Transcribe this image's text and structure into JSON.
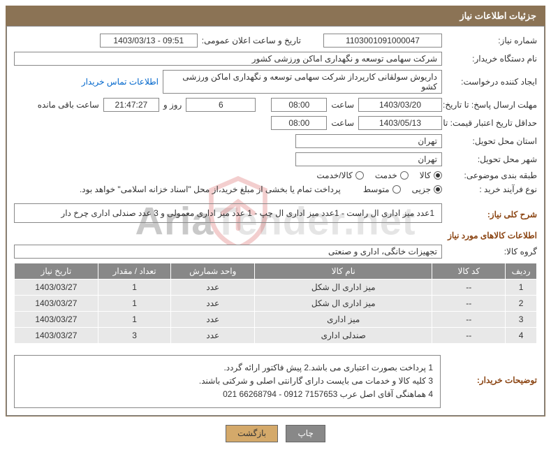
{
  "colors": {
    "header_bg": "#8b7355",
    "header_text": "#ffffff",
    "border": "#888888",
    "section_title": "#8b4513",
    "link": "#0066cc",
    "table_header_bg": "#888888",
    "table_row_bg": "#e8e8e8",
    "btn_print_bg": "#888888",
    "btn_back_bg": "#d4a96a",
    "watermark": "rgba(180,180,180,0.35)"
  },
  "header": {
    "title": "جزئیات اطلاعات نیاز"
  },
  "fields": {
    "need_no_label": "شماره نیاز:",
    "need_no": "1103001091000047",
    "public_announce_label": "تاریخ و ساعت اعلان عمومی:",
    "public_announce": "1403/03/13 - 09:51",
    "buyer_org_label": "نام دستگاه خریدار:",
    "buyer_org": "شرکت سهامی توسعه و نگهداری اماکن ورزشی کشور",
    "requester_label": "ایجاد کننده درخواست:",
    "requester": "داریوش سولقانی کارپرداز شرکت سهامی توسعه و نگهداری اماکن ورزشی کشو",
    "buyer_contact_link": "اطلاعات تماس خریدار",
    "deadline_label": "مهلت ارسال پاسخ: تا تاریخ:",
    "deadline_date": "1403/03/20",
    "time_label": "ساعت",
    "deadline_time": "08:00",
    "days_count": "6",
    "days_and_label": "روز و",
    "remaining_time": "21:47:27",
    "remaining_label": "ساعت باقی مانده",
    "min_validity_label": "حداقل تاریخ اعتبار قیمت: تا",
    "min_validity_date": "1403/05/13",
    "min_validity_time": "08:00",
    "delivery_province_label": "استان محل تحویل:",
    "delivery_province": "تهران",
    "delivery_city_label": "شهر محل تحویل:",
    "delivery_city": "تهران",
    "subject_class_label": "طبقه بندی موضوعی:",
    "radio_kala": "کالا",
    "radio_khedmat": "خدمت",
    "radio_kala_khedmat": "کالا/خدمت",
    "purchase_process_label": "نوع فرآیند خرید :",
    "radio_jozei": "جزیی",
    "radio_motevaset": "متوسط",
    "payment_note": "پرداخت تمام یا بخشی از مبلغ خرید،از محل \"اسناد خزانه اسلامی\" خواهد بود.",
    "general_desc_label": "شرح کلی نیاز:",
    "general_desc": "1عدد میز اداری ال راست - 1عدد میز اداری ال چپ - 1 عدد میز اداری معمولی  و 3 عدد صندلی اداری چرخ دار",
    "items_section_title": "اطلاعات کالاهای مورد نیاز",
    "group_label": "گروه کالا:",
    "group_value": "تجهیزات خانگی، اداری و صنعتی",
    "buyer_notes_label": "توضیحات خریدار:",
    "notes_line1": "1 پرداخت بصورت اعتباری می باشد.2 پیش فاکتور ارائه گردد.",
    "notes_line2": "3 کلیه کالا و خدمات می بایست دارای گارانتی اصلی و شرکتی باشند.",
    "notes_line3": "4 هماهنگی آقای اصل عرب 7157653  0912 - 66268794  021"
  },
  "table": {
    "columns": [
      "ردیف",
      "کد کالا",
      "نام کالا",
      "واحد شمارش",
      "تعداد / مقدار",
      "تاریخ نیاز"
    ],
    "col_widths": [
      "6%",
      "14%",
      "34%",
      "16%",
      "14%",
      "16%"
    ],
    "rows": [
      [
        "1",
        "--",
        "میز اداری ال شکل",
        "عدد",
        "1",
        "1403/03/27"
      ],
      [
        "2",
        "--",
        "میز اداری ال شکل",
        "عدد",
        "1",
        "1403/03/27"
      ],
      [
        "3",
        "--",
        "میز اداری",
        "عدد",
        "1",
        "1403/03/27"
      ],
      [
        "4",
        "--",
        "صندلی اداری",
        "عدد",
        "3",
        "1403/03/27"
      ]
    ]
  },
  "buttons": {
    "print": "چاپ",
    "back": "بازگشت"
  },
  "watermark": {
    "text_aria": "Aria",
    "text_tender": "Tender",
    "text_net": ".net"
  }
}
